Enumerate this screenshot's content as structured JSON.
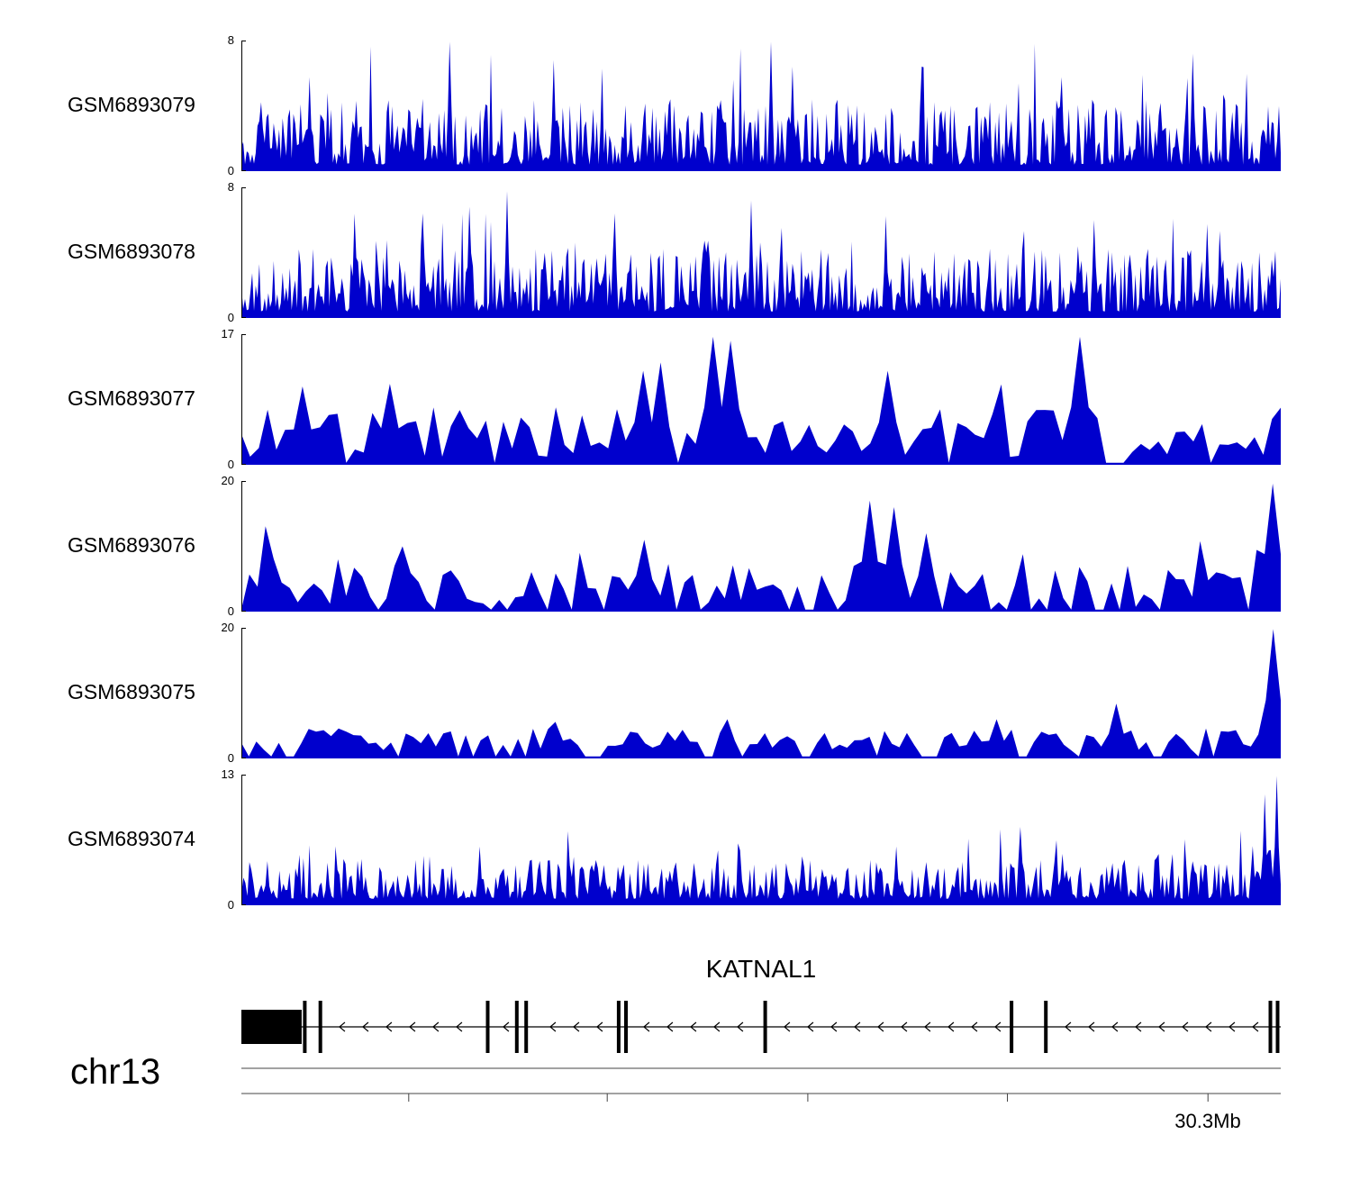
{
  "colors": {
    "signal": "#0000cd",
    "annotation": "#000000"
  },
  "chart_data": {
    "type": "area",
    "description": "Genome browser read-coverage tracks over the KATNAL1 locus on chr13",
    "x_axis": {
      "chromosome": "chr13",
      "tick_label": "30.3Mb",
      "tick_positions": [
        0.161,
        0.352,
        0.545,
        0.737,
        0.93
      ],
      "labeled_tick_index": 4
    },
    "gene_annotation": {
      "name": "KATNAL1",
      "strand": "-",
      "first_exon_span": [
        0,
        0.058
      ],
      "exon_positions": [
        0.061,
        0.076,
        0.237,
        0.265,
        0.274,
        0.363,
        0.37,
        0.504,
        0.741,
        0.774,
        0.99,
        0.997
      ]
    },
    "tracks": [
      {
        "name": "GSM6893079",
        "ylim": [
          0,
          8
        ],
        "ymax_label": "8",
        "ymin_label": "0",
        "render": {
          "style": "spiky",
          "seed": 11,
          "n": 580,
          "base": 0.5,
          "spike_p": 0.16,
          "spike_h": 0.55,
          "peaks": [
            {
              "f": 0.2,
              "h": 0.99
            },
            {
              "f": 0.51,
              "h": 0.99
            },
            {
              "f": 0.065,
              "h": 0.72
            },
            {
              "f": 0.3,
              "h": 0.85
            },
            {
              "f": 0.53,
              "h": 0.8
            },
            {
              "f": 0.655,
              "h": 0.8
            },
            {
              "f": 0.79,
              "h": 0.72
            },
            {
              "f": 0.915,
              "h": 0.9
            }
          ]
        }
      },
      {
        "name": "GSM6893078",
        "ylim": [
          0,
          8
        ],
        "ymax_label": "8",
        "ymin_label": "0",
        "render": {
          "style": "spiky",
          "seed": 22,
          "n": 580,
          "base": 0.48,
          "spike_p": 0.14,
          "spike_h": 0.5,
          "peaks": [
            {
              "f": 0.255,
              "h": 0.97
            },
            {
              "f": 0.175,
              "h": 0.8
            },
            {
              "f": 0.36,
              "h": 0.8
            },
            {
              "f": 0.49,
              "h": 0.9
            },
            {
              "f": 0.62,
              "h": 0.78
            },
            {
              "f": 0.82,
              "h": 0.75
            },
            {
              "f": 0.93,
              "h": 0.72
            }
          ]
        }
      },
      {
        "name": "GSM6893077",
        "ylim": [
          0,
          17
        ],
        "ymax_label": "17",
        "ymin_label": "0",
        "render": {
          "style": "triangle",
          "seed": 33,
          "n": 120,
          "base": 0.38,
          "gap_p": 0.14,
          "spike_p": 0.1,
          "spike_h": 0.45,
          "peaks": [
            {
              "f": 0.455,
              "h": 0.98
            },
            {
              "f": 0.47,
              "h": 0.95
            },
            {
              "f": 0.145,
              "h": 0.62
            },
            {
              "f": 0.385,
              "h": 0.72
            },
            {
              "f": 0.62,
              "h": 0.72
            },
            {
              "f": 0.81,
              "h": 0.98
            },
            {
              "f": 0.055,
              "h": 0.6
            }
          ]
        }
      },
      {
        "name": "GSM6893076",
        "ylim": [
          0,
          20
        ],
        "ymax_label": "20",
        "ymin_label": "0",
        "render": {
          "style": "triangle",
          "seed": 44,
          "n": 130,
          "base": 0.3,
          "gap_p": 0.16,
          "spike_p": 0.08,
          "spike_h": 0.4,
          "peaks": [
            {
              "f": 0.605,
              "h": 0.85
            },
            {
              "f": 0.63,
              "h": 0.8
            },
            {
              "f": 0.385,
              "h": 0.55
            },
            {
              "f": 0.155,
              "h": 0.5
            },
            {
              "f": 0.66,
              "h": 0.6
            },
            {
              "f": 0.995,
              "h": 0.98
            }
          ]
        }
      },
      {
        "name": "GSM6893075",
        "ylim": [
          0,
          20
        ],
        "ymax_label": "20",
        "ymin_label": "0",
        "render": {
          "style": "triangle",
          "seed": 55,
          "n": 140,
          "base": 0.17,
          "gap_p": 0.18,
          "spike_p": 0.05,
          "spike_h": 0.25,
          "peaks": [
            {
              "f": 0.995,
              "h": 0.99
            },
            {
              "f": 0.84,
              "h": 0.42
            },
            {
              "f": 0.47,
              "h": 0.3
            },
            {
              "f": 0.3,
              "h": 0.28
            },
            {
              "f": 0.73,
              "h": 0.3
            }
          ]
        }
      },
      {
        "name": "GSM6893074",
        "ylim": [
          0,
          13
        ],
        "ymax_label": "13",
        "ymin_label": "0",
        "render": {
          "style": "spiky",
          "seed": 66,
          "n": 520,
          "base": 0.3,
          "spike_p": 0.12,
          "spike_h": 0.4,
          "peaks": [
            {
              "f": 0.997,
              "h": 0.99
            },
            {
              "f": 0.985,
              "h": 0.85
            },
            {
              "f": 0.75,
              "h": 0.6
            },
            {
              "f": 0.23,
              "h": 0.45
            },
            {
              "f": 0.48,
              "h": 0.42
            },
            {
              "f": 0.63,
              "h": 0.45
            }
          ]
        }
      }
    ]
  }
}
